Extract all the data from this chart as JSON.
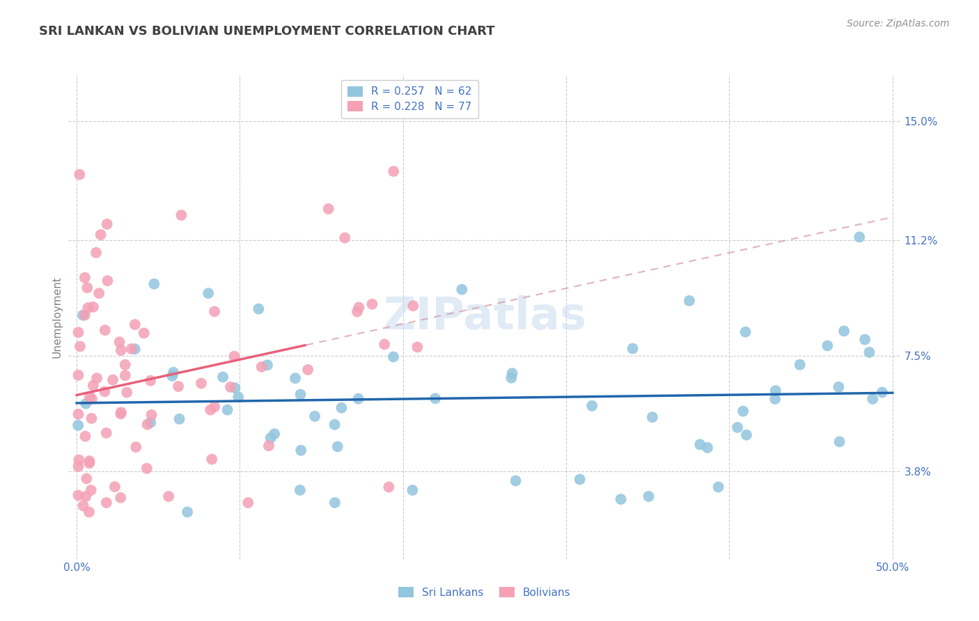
{
  "title": "SRI LANKAN VS BOLIVIAN UNEMPLOYMENT CORRELATION CHART",
  "source": "Source: ZipAtlas.com",
  "ylabel": "Unemployment",
  "xlim": [
    -0.005,
    0.505
  ],
  "ylim": [
    0.01,
    0.165
  ],
  "x_ticks": [
    0.0,
    0.1,
    0.2,
    0.3,
    0.4,
    0.5
  ],
  "x_tick_labels": [
    "0.0%",
    "",
    "",
    "",
    "",
    "50.0%"
  ],
  "y_tick_labels_right": [
    "15.0%",
    "11.2%",
    "7.5%",
    "3.8%"
  ],
  "y_ticks_right": [
    0.15,
    0.112,
    0.075,
    0.038
  ],
  "sri_lankan_R": 0.257,
  "sri_lankan_N": 62,
  "bolivian_R": 0.228,
  "bolivian_N": 77,
  "sri_lankan_color": "#92C5DE",
  "bolivian_color": "#F4A0B5",
  "sri_lankan_line_color": "#2166AC",
  "bolivian_solid_line_color": "#E8607A",
  "bolivian_dash_line_color": "#D4929F",
  "watermark": "ZIPatlas",
  "background_color": "#FFFFFF",
  "grid_color": "#CCCCCC",
  "tick_color": "#4472C4",
  "title_color": "#404040",
  "ylabel_color": "#808080",
  "source_color": "#909090"
}
